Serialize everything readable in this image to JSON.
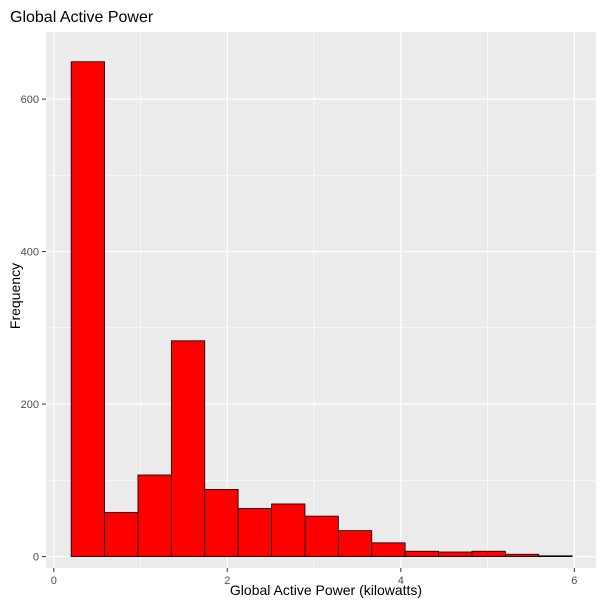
{
  "chart_data": {
    "type": "bar",
    "title": "Global Active Power",
    "xlabel": "Global Active Power (kilowatts)",
    "ylabel": "Frequency",
    "bin_edges": [
      0.2,
      0.585,
      0.97,
      1.355,
      1.74,
      2.125,
      2.51,
      2.895,
      3.28,
      3.665,
      4.05,
      4.435,
      4.82,
      5.205,
      5.59,
      5.975
    ],
    "values": [
      649,
      58,
      107,
      283,
      88,
      63,
      69,
      53,
      34,
      18,
      7,
      6,
      7,
      3,
      1
    ],
    "xlim": [
      -0.09,
      6.25
    ],
    "ylim": [
      -15,
      688
    ],
    "x_ticks": [
      0,
      2,
      4,
      6
    ],
    "x_tick_labels": [
      "0",
      "2",
      "4",
      "6"
    ],
    "y_ticks": [
      0,
      200,
      400,
      600
    ],
    "y_tick_labels": [
      "0",
      "200",
      "400",
      "600"
    ],
    "grid": true,
    "colors": {
      "bar_fill": "#ff0000",
      "bar_stroke": "#000000",
      "panel_bg": "#ebebeb",
      "grid": "#ffffff"
    }
  }
}
